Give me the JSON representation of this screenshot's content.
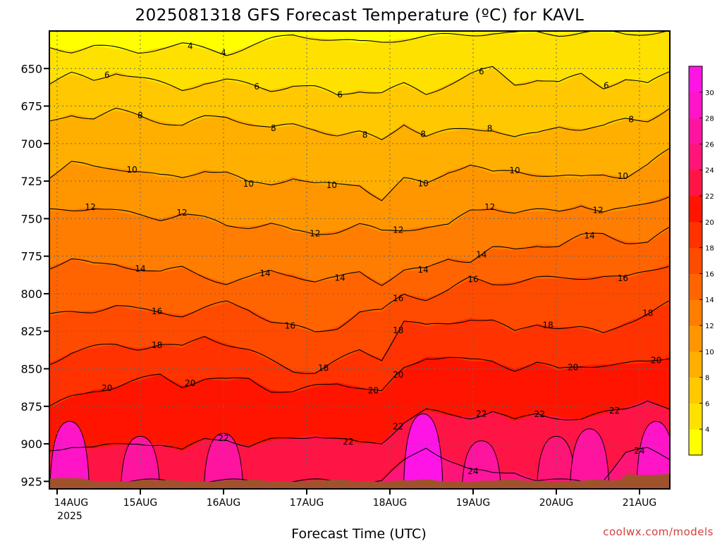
{
  "chart_data": {
    "type": "heatmap",
    "title": "2025081318 GFS Forecast Temperature (ºC) for KAVL",
    "xlabel": "Forecast Time (UTC)",
    "ylabel": "",
    "credit": "coolwx.com/models",
    "year_label": "2025",
    "x_ticks": [
      "14AUG",
      "15AUG",
      "16AUG",
      "17AUG",
      "18AUG",
      "19AUG",
      "20AUG",
      "21AUG"
    ],
    "y_ticks": [
      650,
      675,
      700,
      725,
      750,
      775,
      800,
      825,
      850,
      875,
      900,
      925
    ],
    "y_range_hPa": [
      930,
      625
    ],
    "colorbar": {
      "ticks": [
        4,
        6,
        8,
        10,
        12,
        14,
        16,
        18,
        20,
        22,
        24,
        26,
        28,
        30
      ],
      "colors": [
        "#ffff00",
        "#ffe100",
        "#ffc800",
        "#ffaf00",
        "#ff9600",
        "#ff7d00",
        "#ff6400",
        "#ff4b00",
        "#ff3200",
        "#ff1400",
        "#ff1446",
        "#ff1478",
        "#ff14a0",
        "#ff14c8",
        "#ff14e6"
      ]
    },
    "contour_levels": [
      4,
      6,
      8,
      10,
      12,
      14,
      16,
      18,
      20,
      22,
      24
    ],
    "contours": [
      {
        "level": 4,
        "labels_at_day": [
          1.6,
          2.0
        ],
        "p": [
          636,
          638,
          635,
          637,
          639,
          636,
          634,
          637,
          640,
          635,
          631,
          628,
          629,
          631,
          633,
          632,
          630,
          629,
          628,
          627,
          626,
          627,
          626,
          627,
          626,
          626,
          627,
          626,
          625
        ]
      },
      {
        "level": 6,
        "labels_at_day": [
          0.6,
          2.4,
          3.4,
          5.1,
          6.6
        ],
        "p": [
          660,
          654,
          658,
          652,
          656,
          660,
          664,
          659,
          658,
          661,
          664,
          661,
          663,
          668,
          664,
          666,
          661,
          667,
          660,
          654,
          650,
          660,
          657,
          660,
          654,
          662,
          657,
          661,
          652
        ]
      },
      {
        "level": 8,
        "labels_at_day": [
          1.0,
          2.6,
          3.7,
          4.4,
          5.2,
          6.9
        ],
        "p": [
          686,
          680,
          683,
          678,
          681,
          685,
          688,
          683,
          682,
          686,
          690,
          688,
          690,
          694,
          693,
          698,
          686,
          695,
          692,
          690,
          690,
          696,
          694,
          688,
          690,
          689,
          684,
          684,
          676
        ]
      },
      {
        "level": 10,
        "labels_at_day": [
          0.9,
          2.3,
          3.3,
          4.4,
          5.5,
          6.8
        ],
        "p": [
          722,
          713,
          716,
          716,
          718,
          722,
          723,
          717,
          719,
          727,
          727,
          722,
          727,
          728,
          727,
          737,
          724,
          727,
          718,
          714,
          720,
          718,
          720,
          722,
          723,
          720,
          722,
          715,
          704
        ]
      },
      {
        "level": 12,
        "labels_at_day": [
          0.4,
          1.5,
          3.1,
          4.1,
          5.2,
          6.5
        ],
        "p": [
          745,
          744,
          742,
          745,
          748,
          750,
          746,
          750,
          755,
          755,
          753,
          759,
          760,
          758,
          754,
          759,
          757,
          755,
          755,
          745,
          742,
          746,
          745,
          745,
          740,
          746,
          744,
          739,
          734
        ]
      },
      {
        "level": 14,
        "labels_at_day": [
          1.0,
          2.5,
          3.4,
          4.4,
          5.1,
          6.4
        ],
        "p": [
          782,
          777,
          781,
          780,
          783,
          786,
          783,
          788,
          793,
          790,
          785,
          787,
          792,
          790,
          785,
          793,
          785,
          784,
          776,
          778,
          770,
          771,
          767,
          768,
          762,
          760,
          765,
          766,
          757
        ]
      },
      {
        "level": 16,
        "labels_at_day": [
          1.2,
          2.8,
          4.1,
          5.0,
          6.8
        ],
        "p": [
          815,
          812,
          811,
          808,
          811,
          812,
          814,
          810,
          806,
          810,
          818,
          822,
          826,
          822,
          812,
          812,
          800,
          803,
          798,
          790,
          793,
          792,
          790,
          790,
          789,
          788,
          790,
          785,
          780
        ]
      },
      {
        "level": 18,
        "labels_at_day": [
          1.2,
          3.2,
          4.1,
          5.9,
          7.1
        ],
        "p": [
          846,
          839,
          836,
          834,
          836,
          834,
          836,
          828,
          833,
          838,
          845,
          851,
          852,
          845,
          838,
          843,
          818,
          822,
          820,
          816,
          818,
          826,
          820,
          822,
          823,
          827,
          819,
          813,
          806
        ]
      },
      {
        "level": 20,
        "labels_at_day": [
          0.6,
          1.6,
          3.8,
          4.1,
          6.2,
          7.2
        ],
        "p": [
          876,
          869,
          864,
          862,
          858,
          854,
          861,
          857,
          858,
          856,
          864,
          866,
          862,
          859,
          862,
          866,
          850,
          842,
          842,
          845,
          845,
          850,
          846,
          851,
          848,
          847,
          847,
          846,
          842
        ]
      },
      {
        "level": 22,
        "labels_at_day": [
          2.0,
          3.5,
          4.1,
          5.1,
          5.8,
          6.7,
          7.5
        ],
        "p": [
          904,
          901,
          903,
          901,
          899,
          900,
          905,
          897,
          896,
          902,
          898,
          896,
          894,
          897,
          900,
          899,
          885,
          878,
          881,
          882,
          878,
          885,
          880,
          882,
          884,
          880,
          876,
          870,
          878
        ]
      },
      {
        "level": 24,
        "labels_at_day": [
          5.0,
          7.0,
          7.5
        ],
        "p": [
          924,
          925,
          925,
          925,
          925,
          925,
          925,
          925,
          925,
          925,
          925,
          925,
          925,
          925,
          925,
          925,
          912,
          902,
          910,
          918,
          920,
          918,
          924,
          925,
          925,
          923,
          906,
          904,
          910
        ]
      }
    ],
    "hot_cells": [
      {
        "day": 0.15,
        "p_top": 885,
        "temp": 28
      },
      {
        "day": 1.0,
        "p_top": 895,
        "temp": 26
      },
      {
        "day": 2.0,
        "p_top": 893,
        "temp": 26
      },
      {
        "day": 4.4,
        "p_top": 880,
        "temp": 30
      },
      {
        "day": 5.1,
        "p_top": 898,
        "temp": 26
      },
      {
        "day": 6.0,
        "p_top": 895,
        "temp": 24
      },
      {
        "day": 6.4,
        "p_top": 890,
        "temp": 26
      },
      {
        "day": 7.2,
        "p_top": 885,
        "temp": 28
      },
      {
        "day": 7.7,
        "p_top": 875,
        "temp": 26
      }
    ]
  }
}
